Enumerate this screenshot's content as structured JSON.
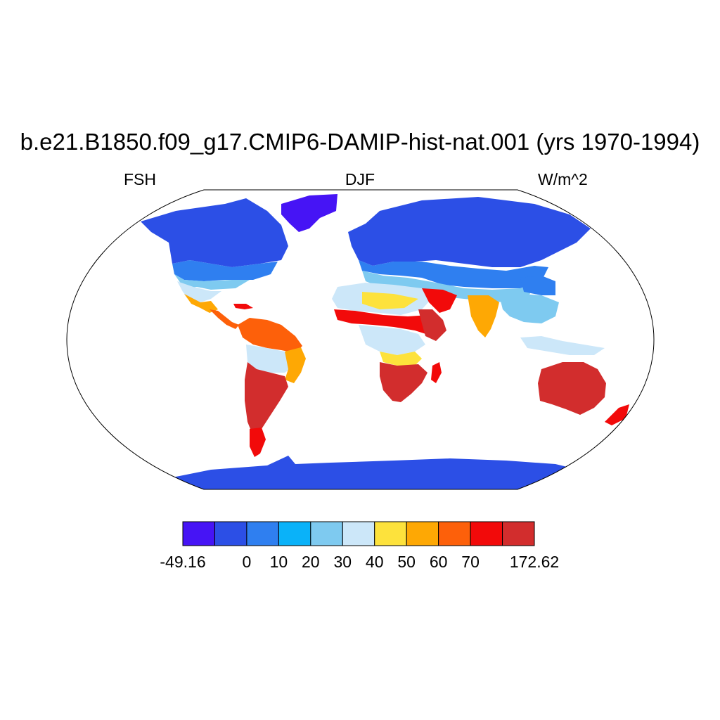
{
  "title": "b.e21.B1850.f09_g17.CMIP6-DAMIP-hist-nat.001 (yrs 1970-1994)",
  "subtitles": {
    "left": "FSH",
    "center": "DJF",
    "right": "W/m^2"
  },
  "colorbar": {
    "colors": [
      "#4614f5",
      "#2c4fe6",
      "#2f7ff0",
      "#0ab2f9",
      "#7ecaf0",
      "#cce7f9",
      "#fde23c",
      "#fea804",
      "#fd600a",
      "#f20a0a",
      "#d22d2d"
    ],
    "labels": [
      "-49.16",
      "0",
      "10",
      "20",
      "30",
      "40",
      "50",
      "60",
      "70",
      "172.62"
    ]
  },
  "regions": [
    {
      "name": "Antarctica",
      "color": "#2c4fe6"
    },
    {
      "name": "Greenland",
      "color": "#4614f5"
    },
    {
      "name": "Canada",
      "color": "#2c4fe6"
    },
    {
      "name": "Eurasia north",
      "color": "#2c4fe6"
    },
    {
      "name": "Sahara",
      "color": "#cce7f9"
    },
    {
      "name": "Sahel",
      "color": "#f20a0a"
    },
    {
      "name": "Southern Africa",
      "color": "#d22d2d"
    },
    {
      "name": "Amazon",
      "color": "#cce7f9"
    },
    {
      "name": "Argentina",
      "color": "#d22d2d"
    },
    {
      "name": "Australia",
      "color": "#d22d2d"
    },
    {
      "name": "India",
      "color": "#fea804"
    }
  ]
}
